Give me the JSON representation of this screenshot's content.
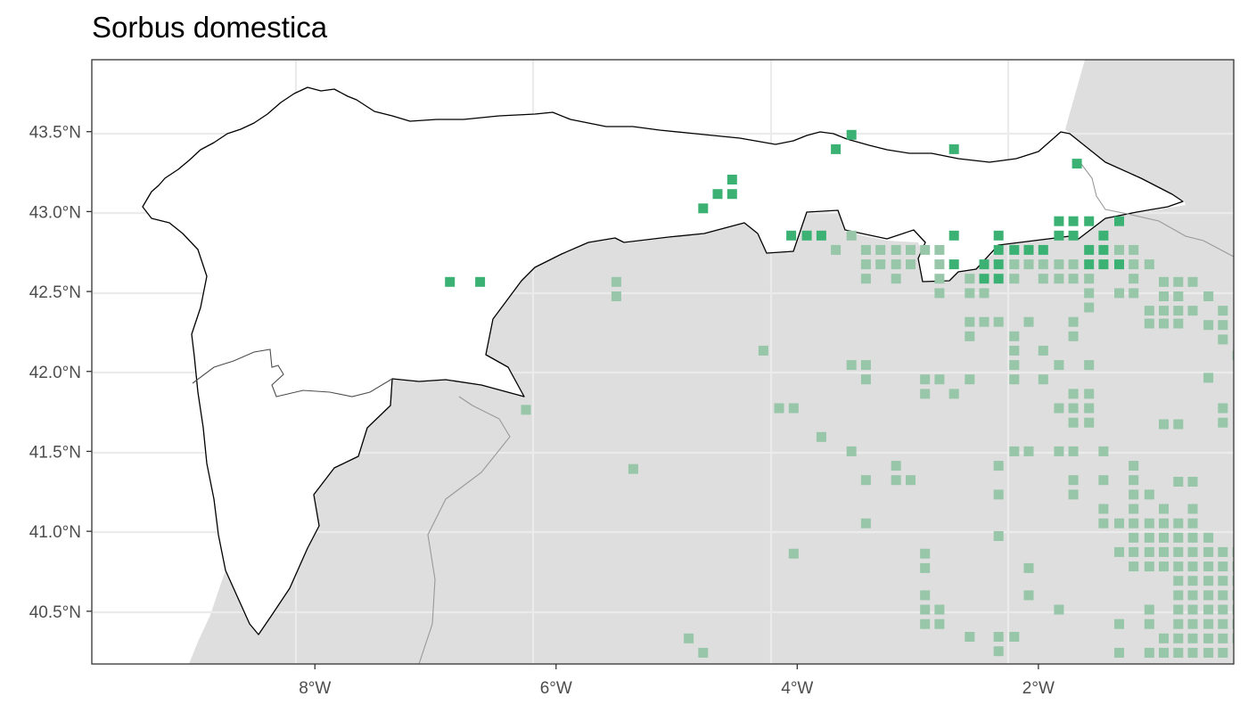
{
  "map": {
    "title": "Sorbus domestica",
    "colors": {
      "panel_background": "#ffffff",
      "land_outside_region": "#dedede",
      "grid": "#ebebeb",
      "region_border": "#000000",
      "other_border": "#999999",
      "presence_in_region": "#3bb273",
      "presence_outside_region": "#97c6a9"
    },
    "extent": {
      "lon": [
        -9.85,
        -0.38
      ],
      "lat": [
        40.17,
        43.95
      ]
    },
    "x_ticks": [
      {
        "value": -8,
        "label": "8°W"
      },
      {
        "value": -6,
        "label": "6°W"
      },
      {
        "value": -4,
        "label": "4°W"
      },
      {
        "value": -2,
        "label": "2°W"
      }
    ],
    "y_ticks": [
      {
        "value": 43.5,
        "label": "43.5°N"
      },
      {
        "value": 43.0,
        "label": "43.0°N"
      },
      {
        "value": 42.5,
        "label": "42.5°N"
      },
      {
        "value": 42.0,
        "label": "42.0°N"
      },
      {
        "value": 41.5,
        "label": "41.5°N"
      },
      {
        "value": 41.0,
        "label": "41.0°N"
      },
      {
        "value": 40.5,
        "label": "40.5°N"
      }
    ],
    "presence_in_region": [
      [
        -6.88,
        42.56
      ],
      [
        -6.63,
        42.56
      ],
      [
        -4.78,
        43.02
      ],
      [
        -4.66,
        43.11
      ],
      [
        -4.54,
        43.11
      ],
      [
        -4.54,
        43.2
      ],
      [
        -4.05,
        42.85
      ],
      [
        -3.92,
        42.85
      ],
      [
        -3.8,
        42.85
      ],
      [
        -3.55,
        43.48
      ],
      [
        -3.68,
        43.39
      ],
      [
        -2.7,
        43.39
      ],
      [
        -1.68,
        43.3
      ],
      [
        -2.7,
        42.85
      ],
      [
        -2.33,
        42.85
      ],
      [
        -2.33,
        42.76
      ],
      [
        -2.2,
        42.76
      ],
      [
        -2.08,
        42.76
      ],
      [
        -1.96,
        42.76
      ],
      [
        -1.83,
        42.94
      ],
      [
        -1.71,
        42.94
      ],
      [
        -1.58,
        42.94
      ],
      [
        -1.83,
        42.85
      ],
      [
        -1.71,
        42.85
      ],
      [
        -1.46,
        42.85
      ],
      [
        -1.33,
        42.94
      ],
      [
        -1.58,
        42.76
      ],
      [
        -1.46,
        42.76
      ],
      [
        -2.7,
        42.67
      ],
      [
        -2.45,
        42.67
      ],
      [
        -2.33,
        42.67
      ],
      [
        -1.58,
        42.67
      ],
      [
        -1.46,
        42.67
      ],
      [
        -1.33,
        42.67
      ],
      [
        -2.45,
        42.58
      ],
      [
        -2.33,
        42.58
      ]
    ],
    "presence_outside_region": [
      [
        -5.5,
        42.56
      ],
      [
        -5.5,
        42.47
      ],
      [
        -4.28,
        42.13
      ],
      [
        -4.15,
        41.77
      ],
      [
        -4.03,
        41.77
      ],
      [
        -3.8,
        41.59
      ],
      [
        -5.36,
        41.39
      ],
      [
        -6.25,
        41.76
      ],
      [
        -3.68,
        42.76
      ],
      [
        -3.55,
        42.85
      ],
      [
        -3.43,
        42.76
      ],
      [
        -3.31,
        42.76
      ],
      [
        -3.18,
        42.76
      ],
      [
        -3.06,
        42.76
      ],
      [
        -3.43,
        42.67
      ],
      [
        -3.31,
        42.67
      ],
      [
        -3.18,
        42.67
      ],
      [
        -3.06,
        42.67
      ],
      [
        -3.43,
        42.58
      ],
      [
        -3.18,
        42.58
      ],
      [
        -2.94,
        42.76
      ],
      [
        -2.82,
        42.76
      ],
      [
        -2.82,
        42.67
      ],
      [
        -2.82,
        42.58
      ],
      [
        -2.82,
        42.49
      ],
      [
        -2.57,
        42.58
      ],
      [
        -2.57,
        42.49
      ],
      [
        -2.45,
        42.49
      ],
      [
        -2.2,
        42.67
      ],
      [
        -2.08,
        42.67
      ],
      [
        -1.96,
        42.67
      ],
      [
        -1.83,
        42.67
      ],
      [
        -1.71,
        42.67
      ],
      [
        -2.2,
        42.58
      ],
      [
        -1.96,
        42.58
      ],
      [
        -1.83,
        42.58
      ],
      [
        -1.71,
        42.58
      ],
      [
        -1.58,
        42.58
      ],
      [
        -1.21,
        42.67
      ],
      [
        -1.08,
        42.67
      ],
      [
        -1.33,
        42.76
      ],
      [
        -1.21,
        42.76
      ],
      [
        -1.21,
        42.58
      ],
      [
        -1.21,
        42.49
      ],
      [
        -1.58,
        42.49
      ],
      [
        -1.58,
        42.4
      ],
      [
        -1.33,
        42.49
      ],
      [
        -0.96,
        42.56
      ],
      [
        -0.84,
        42.56
      ],
      [
        -0.72,
        42.56
      ],
      [
        -0.96,
        42.47
      ],
      [
        -0.84,
        42.47
      ],
      [
        -0.59,
        42.47
      ],
      [
        -1.08,
        42.38
      ],
      [
        -0.96,
        42.38
      ],
      [
        -0.84,
        42.38
      ],
      [
        -0.72,
        42.38
      ],
      [
        -0.47,
        42.38
      ],
      [
        -1.08,
        42.3
      ],
      [
        -0.96,
        42.3
      ],
      [
        -0.84,
        42.3
      ],
      [
        -0.59,
        42.29
      ],
      [
        -0.47,
        42.29
      ],
      [
        -0.47,
        42.2
      ],
      [
        -0.35,
        42.1
      ],
      [
        -2.57,
        42.31
      ],
      [
        -2.45,
        42.31
      ],
      [
        -2.33,
        42.31
      ],
      [
        -2.08,
        42.31
      ],
      [
        -2.57,
        42.22
      ],
      [
        -2.2,
        42.22
      ],
      [
        -1.71,
        42.31
      ],
      [
        -1.71,
        42.22
      ],
      [
        -2.2,
        42.13
      ],
      [
        -1.96,
        42.13
      ],
      [
        -2.2,
        42.04
      ],
      [
        -1.83,
        42.04
      ],
      [
        -1.58,
        42.04
      ],
      [
        -2.2,
        41.95
      ],
      [
        -1.96,
        41.95
      ],
      [
        -3.55,
        42.04
      ],
      [
        -3.43,
        42.04
      ],
      [
        -3.43,
        41.95
      ],
      [
        -2.94,
        41.95
      ],
      [
        -2.82,
        41.95
      ],
      [
        -2.57,
        41.95
      ],
      [
        -2.94,
        41.86
      ],
      [
        -2.7,
        41.86
      ],
      [
        -1.71,
        41.86
      ],
      [
        -1.58,
        41.86
      ],
      [
        -1.83,
        41.77
      ],
      [
        -1.71,
        41.77
      ],
      [
        -1.58,
        41.77
      ],
      [
        -1.71,
        41.68
      ],
      [
        -1.58,
        41.68
      ],
      [
        -3.55,
        41.5
      ],
      [
        -3.18,
        41.41
      ],
      [
        -3.18,
        41.32
      ],
      [
        -3.06,
        41.32
      ],
      [
        -3.43,
        41.32
      ],
      [
        -2.33,
        41.41
      ],
      [
        -2.33,
        41.23
      ],
      [
        -2.2,
        41.5
      ],
      [
        -2.08,
        41.5
      ],
      [
        -1.83,
        41.5
      ],
      [
        -1.71,
        41.5
      ],
      [
        -1.46,
        41.5
      ],
      [
        -1.71,
        41.32
      ],
      [
        -1.71,
        41.23
      ],
      [
        -1.46,
        41.32
      ],
      [
        -1.21,
        41.41
      ],
      [
        -1.21,
        41.32
      ],
      [
        -1.21,
        41.23
      ],
      [
        -1.08,
        41.23
      ],
      [
        -1.46,
        41.14
      ],
      [
        -1.21,
        41.14
      ],
      [
        -0.96,
        41.14
      ],
      [
        -0.72,
        41.14
      ],
      [
        -0.84,
        41.31
      ],
      [
        -0.72,
        41.31
      ],
      [
        -0.84,
        41.67
      ],
      [
        -0.96,
        41.67
      ],
      [
        -0.47,
        41.77
      ],
      [
        -0.47,
        41.68
      ],
      [
        -3.43,
        41.05
      ],
      [
        -4.03,
        40.86
      ],
      [
        -2.33,
        40.97
      ],
      [
        -1.46,
        41.05
      ],
      [
        -1.33,
        41.05
      ],
      [
        -1.21,
        41.05
      ],
      [
        -1.08,
        41.05
      ],
      [
        -0.96,
        41.05
      ],
      [
        -0.84,
        41.05
      ],
      [
        -0.72,
        41.05
      ],
      [
        -1.21,
        40.96
      ],
      [
        -1.08,
        40.96
      ],
      [
        -0.96,
        40.96
      ],
      [
        -0.84,
        40.96
      ],
      [
        -0.72,
        40.96
      ],
      [
        -0.59,
        40.96
      ],
      [
        -1.33,
        40.87
      ],
      [
        -1.21,
        40.87
      ],
      [
        -1.08,
        40.87
      ],
      [
        -0.96,
        40.87
      ],
      [
        -0.84,
        40.87
      ],
      [
        -0.72,
        40.87
      ],
      [
        -0.59,
        40.87
      ],
      [
        -0.47,
        40.87
      ],
      [
        -0.35,
        40.87
      ],
      [
        -1.21,
        40.78
      ],
      [
        -1.08,
        40.78
      ],
      [
        -0.96,
        40.78
      ],
      [
        -0.84,
        40.78
      ],
      [
        -0.72,
        40.78
      ],
      [
        -0.59,
        40.78
      ],
      [
        -0.47,
        40.78
      ],
      [
        -0.35,
        40.78
      ],
      [
        -0.84,
        40.69
      ],
      [
        -0.72,
        40.69
      ],
      [
        -0.59,
        40.69
      ],
      [
        -0.47,
        40.69
      ],
      [
        -0.35,
        40.69
      ],
      [
        -0.84,
        40.6
      ],
      [
        -0.72,
        40.6
      ],
      [
        -0.59,
        40.6
      ],
      [
        -0.47,
        40.6
      ],
      [
        -0.35,
        40.6
      ],
      [
        -0.84,
        40.51
      ],
      [
        -0.72,
        40.51
      ],
      [
        -0.59,
        40.51
      ],
      [
        -0.47,
        40.51
      ],
      [
        -0.35,
        40.51
      ],
      [
        -0.84,
        40.42
      ],
      [
        -0.72,
        40.42
      ],
      [
        -0.59,
        40.42
      ],
      [
        -0.47,
        40.42
      ],
      [
        -0.35,
        40.42
      ],
      [
        -0.96,
        40.33
      ],
      [
        -0.84,
        40.33
      ],
      [
        -0.72,
        40.33
      ],
      [
        -0.59,
        40.33
      ],
      [
        -0.47,
        40.33
      ],
      [
        -0.35,
        40.33
      ],
      [
        -0.96,
        40.24
      ],
      [
        -0.84,
        40.24
      ],
      [
        -0.72,
        40.24
      ],
      [
        -0.59,
        40.24
      ],
      [
        -0.47,
        40.24
      ],
      [
        -2.94,
        40.86
      ],
      [
        -2.94,
        40.77
      ],
      [
        -2.94,
        40.6
      ],
      [
        -2.94,
        40.51
      ],
      [
        -2.82,
        40.51
      ],
      [
        -2.94,
        40.42
      ],
      [
        -2.82,
        40.42
      ],
      [
        -2.08,
        40.77
      ],
      [
        -2.08,
        40.6
      ],
      [
        -1.08,
        40.51
      ],
      [
        -1.83,
        40.51
      ],
      [
        -1.33,
        40.42
      ],
      [
        -1.08,
        40.42
      ],
      [
        -2.57,
        40.34
      ],
      [
        -2.33,
        40.34
      ],
      [
        -2.2,
        40.34
      ],
      [
        -2.33,
        40.25
      ],
      [
        -1.33,
        40.24
      ],
      [
        -1.08,
        40.24
      ],
      [
        -4.9,
        40.33
      ],
      [
        -4.78,
        40.24
      ],
      [
        -0.59,
        41.96
      ]
    ]
  }
}
